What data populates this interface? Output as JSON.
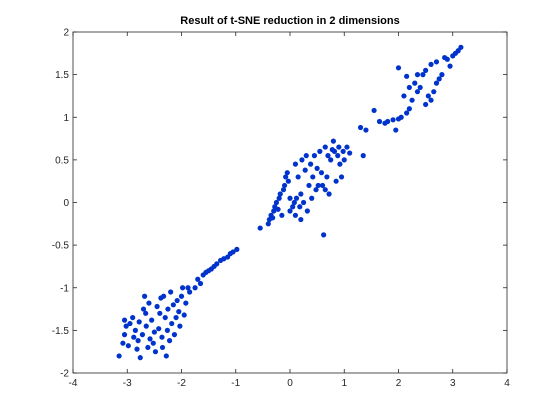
{
  "chart_data": {
    "type": "scatter",
    "title": "Result of t-SNE reduction in 2 dimensions",
    "xlabel": "",
    "ylabel": "",
    "xlim": [
      -4,
      4
    ],
    "ylim": [
      -2,
      2
    ],
    "xticks": [
      "-4",
      "-3",
      "-2",
      "-1",
      "0",
      "1",
      "2",
      "3",
      "4"
    ],
    "yticks": [
      "-2",
      "-1.5",
      "-1",
      "-0.5",
      "0",
      "0.5",
      "1",
      "1.5",
      "2"
    ],
    "grid": false,
    "legend": "none",
    "marker_color": "#0033cc",
    "series": [
      {
        "points": [
          [
            -3.15,
            -1.8
          ],
          [
            -3.08,
            -1.65
          ],
          [
            -3.05,
            -1.55
          ],
          [
            -3.05,
            -1.38
          ],
          [
            -3.02,
            -1.45
          ],
          [
            -2.98,
            -1.68
          ],
          [
            -2.95,
            -1.42
          ],
          [
            -2.9,
            -1.35
          ],
          [
            -2.88,
            -1.58
          ],
          [
            -2.85,
            -1.5
          ],
          [
            -2.82,
            -1.72
          ],
          [
            -2.8,
            -1.62
          ],
          [
            -2.78,
            -1.4
          ],
          [
            -2.76,
            -1.82
          ],
          [
            -2.72,
            -1.55
          ],
          [
            -2.7,
            -1.25
          ],
          [
            -2.68,
            -1.1
          ],
          [
            -2.66,
            -1.3
          ],
          [
            -2.65,
            -1.45
          ],
          [
            -2.62,
            -1.7
          ],
          [
            -2.6,
            -1.18
          ],
          [
            -2.58,
            -1.6
          ],
          [
            -2.55,
            -1.38
          ],
          [
            -2.52,
            -1.65
          ],
          [
            -2.5,
            -1.52
          ],
          [
            -2.48,
            -1.75
          ],
          [
            -2.45,
            -1.22
          ],
          [
            -2.42,
            -1.48
          ],
          [
            -2.4,
            -1.3
          ],
          [
            -2.38,
            -1.12
          ],
          [
            -2.36,
            -1.58
          ],
          [
            -2.35,
            -1.7
          ],
          [
            -2.33,
            -1.1
          ],
          [
            -2.3,
            -1.35
          ],
          [
            -2.28,
            -1.8
          ],
          [
            -2.26,
            -1.5
          ],
          [
            -2.25,
            -1.25
          ],
          [
            -2.22,
            -1.62
          ],
          [
            -2.2,
            -1.05
          ],
          [
            -2.18,
            -1.42
          ],
          [
            -2.15,
            -1.2
          ],
          [
            -2.13,
            -1.55
          ],
          [
            -2.1,
            -1.35
          ],
          [
            -2.08,
            -1.15
          ],
          [
            -2.05,
            -1.28
          ],
          [
            -2.03,
            -1.45
          ],
          [
            -2.0,
            -1.1
          ],
          [
            -1.98,
            -1.0
          ],
          [
            -1.95,
            -1.32
          ],
          [
            -1.92,
            -1.18
          ],
          [
            -1.88,
            -1.0
          ],
          [
            -1.85,
            -1.05
          ],
          [
            -1.75,
            -1.0
          ],
          [
            -1.7,
            -0.9
          ],
          [
            -1.65,
            -0.95
          ],
          [
            -1.6,
            -0.85
          ],
          [
            -1.55,
            -0.82
          ],
          [
            -1.5,
            -0.8
          ],
          [
            -1.45,
            -0.78
          ],
          [
            -1.4,
            -0.75
          ],
          [
            -1.35,
            -0.72
          ],
          [
            -1.28,
            -0.68
          ],
          [
            -1.22,
            -0.66
          ],
          [
            -1.15,
            -0.64
          ],
          [
            -1.1,
            -0.6
          ],
          [
            -1.05,
            -0.58
          ],
          [
            -0.98,
            -0.55
          ],
          [
            -0.55,
            -0.3
          ],
          [
            -0.4,
            -0.25
          ],
          [
            -0.38,
            -0.2
          ],
          [
            -0.35,
            -0.15
          ],
          [
            -0.32,
            -0.18
          ],
          [
            -0.3,
            -0.1
          ],
          [
            -0.28,
            -0.05
          ],
          [
            -0.25,
            0.0
          ],
          [
            -0.22,
            -0.08
          ],
          [
            -0.2,
            0.05
          ],
          [
            -0.18,
            0.1
          ],
          [
            -0.15,
            -0.15
          ],
          [
            -0.12,
            0.15
          ],
          [
            -0.1,
            0.2
          ],
          [
            -0.08,
            0.3
          ],
          [
            -0.05,
            0.35
          ],
          [
            -0.03,
            0.25
          ],
          [
            0.0,
            -0.1
          ],
          [
            0.0,
            0.05
          ],
          [
            0.05,
            -0.05
          ],
          [
            0.08,
            0.0
          ],
          [
            0.1,
            0.45
          ],
          [
            0.1,
            -0.15
          ],
          [
            0.12,
            0.05
          ],
          [
            0.15,
            0.3
          ],
          [
            0.18,
            -0.05
          ],
          [
            0.2,
            0.1
          ],
          [
            0.2,
            -0.2
          ],
          [
            0.22,
            0.5
          ],
          [
            0.25,
            0.0
          ],
          [
            0.28,
            0.38
          ],
          [
            0.3,
            0.55
          ],
          [
            0.32,
            -0.1
          ],
          [
            0.35,
            0.2
          ],
          [
            0.38,
            0.45
          ],
          [
            0.4,
            0.05
          ],
          [
            0.42,
            0.3
          ],
          [
            0.45,
            0.55
          ],
          [
            0.48,
            0.15
          ],
          [
            0.5,
            0.4
          ],
          [
            0.52,
            0.2
          ],
          [
            0.55,
            0.6
          ],
          [
            0.58,
            0.35
          ],
          [
            0.6,
            0.2
          ],
          [
            0.62,
            -0.38
          ],
          [
            0.65,
            0.15
          ],
          [
            0.65,
            0.65
          ],
          [
            0.68,
            0.3
          ],
          [
            0.7,
            0.55
          ],
          [
            0.72,
            0.1
          ],
          [
            0.75,
            0.5
          ],
          [
            0.78,
            0.62
          ],
          [
            0.8,
            0.72
          ],
          [
            0.82,
            0.6
          ],
          [
            0.85,
            0.25
          ],
          [
            0.88,
            0.55
          ],
          [
            0.9,
            0.65
          ],
          [
            0.92,
            0.45
          ],
          [
            0.95,
            0.3
          ],
          [
            0.98,
            0.6
          ],
          [
            1.0,
            0.5
          ],
          [
            1.05,
            0.65
          ],
          [
            1.1,
            0.58
          ],
          [
            1.3,
            0.88
          ],
          [
            1.35,
            0.55
          ],
          [
            1.4,
            0.85
          ],
          [
            1.55,
            1.08
          ],
          [
            1.65,
            0.95
          ],
          [
            1.75,
            0.93
          ],
          [
            1.8,
            0.95
          ],
          [
            1.9,
            0.97
          ],
          [
            1.95,
            0.85
          ],
          [
            2.0,
            0.98
          ],
          [
            2.0,
            1.58
          ],
          [
            2.05,
            1.0
          ],
          [
            2.1,
            1.25
          ],
          [
            2.15,
            1.48
          ],
          [
            2.15,
            1.05
          ],
          [
            2.2,
            1.35
          ],
          [
            2.2,
            1.1
          ],
          [
            2.25,
            1.2
          ],
          [
            2.3,
            1.4
          ],
          [
            2.35,
            1.3
          ],
          [
            2.35,
            1.5
          ],
          [
            2.4,
            1.35
          ],
          [
            2.45,
            1.5
          ],
          [
            2.5,
            1.15
          ],
          [
            2.5,
            1.55
          ],
          [
            2.55,
            1.25
          ],
          [
            2.6,
            1.2
          ],
          [
            2.6,
            1.62
          ],
          [
            2.65,
            1.3
          ],
          [
            2.7,
            1.4
          ],
          [
            2.7,
            1.65
          ],
          [
            2.75,
            1.45
          ],
          [
            2.8,
            1.5
          ],
          [
            2.85,
            1.7
          ],
          [
            2.9,
            1.68
          ],
          [
            2.95,
            1.6
          ],
          [
            3.0,
            1.72
          ],
          [
            3.05,
            1.75
          ],
          [
            3.1,
            1.78
          ],
          [
            3.15,
            1.82
          ]
        ]
      }
    ]
  }
}
